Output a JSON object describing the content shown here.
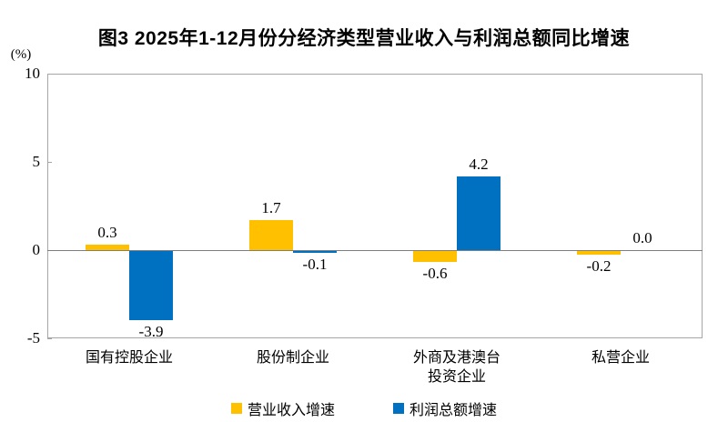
{
  "title": "图3 2025年1-12月份分经济类型营业收入与利润总额同比增速",
  "y_unit": "(%)",
  "colors": {
    "revenue_series": "#FFC000",
    "profit_series": "#0070C0",
    "plot_border": "#a6a6a6",
    "zero_line": "#7f7f7f",
    "text": "#000000"
  },
  "chart_data": {
    "type": "bar",
    "title": "图3 2025年1-12月份分经济类型营业收入与利润总额同比增速",
    "ylabel": "(%)",
    "xlabel": "",
    "categories": [
      "国有控股企业",
      "股份制企业",
      "外商及港澳台\n投资企业",
      "私营企业"
    ],
    "series": [
      {
        "name": "营业收入增速",
        "color": "#FFC000",
        "values": [
          0.3,
          1.7,
          -0.6,
          -0.2
        ]
      },
      {
        "name": "利润总额增速",
        "color": "#0070C0",
        "values": [
          -3.9,
          -0.1,
          4.2,
          0.0
        ]
      }
    ],
    "ylim": [
      -5,
      10
    ],
    "yticks": [
      10,
      5,
      0,
      -5
    ],
    "grid": false,
    "legend_position": "bottom",
    "data_labels": true,
    "label_decimals": 1
  }
}
